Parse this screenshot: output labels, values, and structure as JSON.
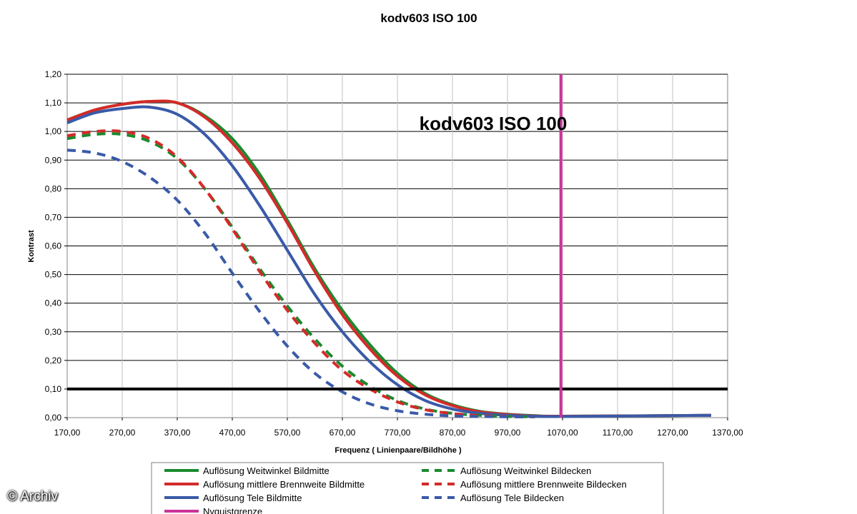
{
  "chart_data": {
    "type": "line",
    "title": "kodv603   ISO 100",
    "inner_title": "kodv603   ISO 100",
    "xlabel": "Frequenz ( Linienpaare/Bildhöhe )",
    "ylabel": "Kontrast",
    "xlim": [
      170,
      1370
    ],
    "ylim": [
      0,
      1.2
    ],
    "x_ticks": [
      "170,00",
      "270,00",
      "370,00",
      "470,00",
      "570,00",
      "670,00",
      "770,00",
      "870,00",
      "970,00",
      "1070,00",
      "1170,00",
      "1270,00",
      "1370,00"
    ],
    "x_tick_values": [
      170,
      270,
      370,
      470,
      570,
      670,
      770,
      870,
      970,
      1070,
      1170,
      1270,
      1370
    ],
    "y_ticks": [
      "0,00",
      "0,10",
      "0,20",
      "0,30",
      "0,40",
      "0,50",
      "0,60",
      "0,70",
      "0,80",
      "0,90",
      "1,00",
      "1,10",
      "1,20"
    ],
    "y_tick_values": [
      0,
      0.1,
      0.2,
      0.3,
      0.4,
      0.5,
      0.6,
      0.7,
      0.8,
      0.9,
      1.0,
      1.1,
      1.2
    ],
    "grid": true,
    "reference_line": {
      "y": 0.1,
      "color": "#000000"
    },
    "nyquist": {
      "name": "Nyquistgrenze",
      "x": 1067,
      "color": "#cc3399"
    },
    "series": [
      {
        "name": "Auflösung Weitwinkel Bildmitte",
        "color": "#1a8a2e",
        "dash": false,
        "x": [
          170,
          220,
          270,
          320,
          370,
          420,
          470,
          520,
          570,
          620,
          670,
          720,
          770,
          820,
          870,
          920,
          970,
          1020,
          1070,
          1340
        ],
        "y": [
          1.04,
          1.075,
          1.095,
          1.105,
          1.1,
          1.055,
          0.975,
          0.85,
          0.69,
          0.52,
          0.375,
          0.255,
          0.155,
          0.085,
          0.045,
          0.022,
          0.012,
          0.007,
          0.005,
          0.008
        ]
      },
      {
        "name": "Auflösung mittlere Brennweite Bildmitte",
        "color": "#d42a2a",
        "dash": false,
        "x": [
          170,
          220,
          270,
          320,
          370,
          420,
          470,
          520,
          570,
          620,
          670,
          720,
          770,
          820,
          870,
          920,
          970,
          1020,
          1070,
          1340
        ],
        "y": [
          1.04,
          1.075,
          1.095,
          1.105,
          1.1,
          1.05,
          0.96,
          0.835,
          0.68,
          0.51,
          0.36,
          0.24,
          0.145,
          0.08,
          0.042,
          0.02,
          0.011,
          0.006,
          0.005,
          0.008
        ]
      },
      {
        "name": "Auflösung Tele Bildmitte",
        "color": "#3a5aa8",
        "dash": false,
        "x": [
          170,
          220,
          270,
          320,
          370,
          420,
          470,
          520,
          570,
          620,
          670,
          720,
          770,
          820,
          870,
          920,
          970,
          1020,
          1070,
          1340
        ],
        "y": [
          1.03,
          1.065,
          1.08,
          1.085,
          1.06,
          0.99,
          0.88,
          0.74,
          0.585,
          0.43,
          0.3,
          0.195,
          0.115,
          0.06,
          0.03,
          0.015,
          0.008,
          0.005,
          0.004,
          0.008
        ]
      },
      {
        "name": "Auflösung Weitwinkel Bildecken",
        "color": "#1a8a2e",
        "dash": true,
        "x": [
          170,
          220,
          270,
          320,
          370,
          420,
          470,
          520,
          570,
          620,
          670,
          720,
          770,
          820,
          870,
          920,
          970,
          1020
        ],
        "y": [
          0.975,
          0.99,
          0.99,
          0.965,
          0.905,
          0.8,
          0.665,
          0.52,
          0.39,
          0.275,
          0.18,
          0.11,
          0.06,
          0.03,
          0.015,
          0.008,
          0.004,
          0.003
        ]
      },
      {
        "name": "Auflösung mittlere Brennweite Bildecken",
        "color": "#d42a2a",
        "dash": true,
        "x": [
          170,
          220,
          270,
          320,
          370,
          420,
          470,
          520,
          570,
          620,
          670,
          720,
          770,
          820,
          870,
          920,
          970,
          1020
        ],
        "y": [
          0.985,
          1.0,
          1.0,
          0.975,
          0.91,
          0.8,
          0.66,
          0.51,
          0.375,
          0.26,
          0.165,
          0.1,
          0.055,
          0.028,
          0.014,
          0.007,
          0.004,
          0.003
        ]
      },
      {
        "name": "Auflösung Tele Bildecken",
        "color": "#3a5aa8",
        "dash": true,
        "x": [
          170,
          220,
          270,
          320,
          370,
          420,
          470,
          520,
          570,
          620,
          670,
          720,
          770,
          820,
          870,
          920,
          970,
          1020
        ],
        "y": [
          0.935,
          0.925,
          0.895,
          0.84,
          0.76,
          0.645,
          0.505,
          0.37,
          0.25,
          0.155,
          0.09,
          0.048,
          0.024,
          0.012,
          0.006,
          0.004,
          0.003,
          0.003
        ]
      }
    ],
    "legend": [
      {
        "label": "Auflösung Weitwinkel Bildmitte",
        "color": "#1a8a2e",
        "dash": false
      },
      {
        "label": "Auflösung mittlere Brennweite Bildmitte",
        "color": "#d42a2a",
        "dash": false
      },
      {
        "label": "Auflösung Tele Bildmitte",
        "color": "#3a5aa8",
        "dash": false
      },
      {
        "label": "Nyquistgrenze",
        "color": "#cc3399",
        "dash": false
      },
      {
        "label": "Auflösung Weitwinkel Bildecken",
        "color": "#1a8a2e",
        "dash": true
      },
      {
        "label": "Auflösung mittlere Brennweite Bildecken",
        "color": "#d42a2a",
        "dash": true
      },
      {
        "label": "Auflösung Tele Bildecken",
        "color": "#3a5aa8",
        "dash": true
      }
    ]
  },
  "watermark": "© Archiv"
}
